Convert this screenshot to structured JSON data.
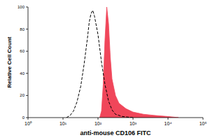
{
  "chart_data": {
    "type": "line",
    "log": "x",
    "grid": false,
    "x_label": "anti-mouse CD106 FITC",
    "y_label": "Relative Cell Count",
    "xlim": [
      1,
      100000
    ],
    "xticks": [
      {
        "value": 1,
        "label": "10⁰"
      },
      {
        "value": 10,
        "label": "10¹"
      },
      {
        "value": 100,
        "label": "10²"
      },
      {
        "value": 1000,
        "label": "10³"
      },
      {
        "value": 10000,
        "label": "10⁴"
      },
      {
        "value": 100000,
        "label": "10⁵"
      }
    ],
    "ylim": [
      0,
      100
    ],
    "yticks": [
      0,
      20,
      40,
      60,
      80,
      100
    ],
    "series": [
      {
        "type": "line",
        "color": "#000000",
        "line_style": "dashed",
        "x": [
          12.6,
          16,
          20,
          25,
          32,
          40,
          50,
          56,
          63,
          71,
          79,
          100,
          126,
          158,
          200,
          251,
          316,
          501,
          1000
        ],
        "values": [
          0,
          2,
          6,
          14,
          28,
          48,
          72,
          86,
          94,
          97,
          92,
          75,
          50,
          30,
          15,
          7,
          3,
          1,
          0
        ]
      },
      {
        "type": "area",
        "color": "#f0465a",
        "line_style": "solid",
        "x": [
          112,
          126,
          141,
          158,
          178,
          200,
          224,
          251,
          316,
          398,
          631,
          1000,
          1995,
          3981,
          10000,
          19953
        ],
        "values": [
          0,
          6,
          30,
          70,
          100,
          85,
          55,
          35,
          20,
          13,
          8,
          5,
          3,
          2,
          1,
          0
        ]
      }
    ]
  }
}
